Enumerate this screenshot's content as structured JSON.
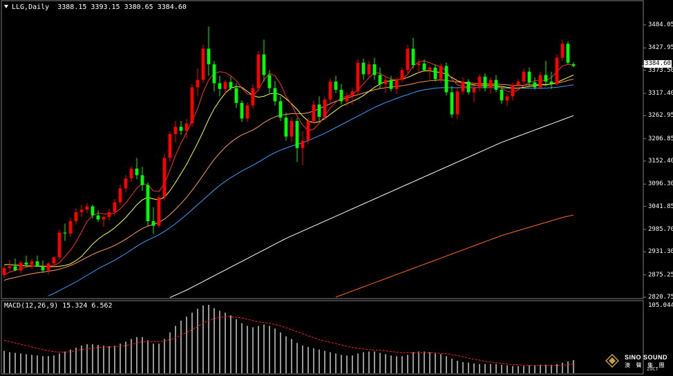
{
  "header": {
    "symbol": "LLG,Daily",
    "ohlc": "3388.15 3393.15 3380.65 3384.60"
  },
  "macd_header": {
    "label": "MACD(12,26,9) 15.324 6.562"
  },
  "price_axis": {
    "labels": [
      "3484.05",
      "3427.95",
      "3373.50",
      "3317.40",
      "3262.95",
      "3206.85",
      "3152.40",
      "3096.30",
      "3041.85",
      "2985.70",
      "2931.30",
      "2875.25",
      "2820.75"
    ],
    "current": "3384.60"
  },
  "macd_axis": {
    "top_label": "105.044"
  },
  "watermark": {
    "brand": "SINO SOUND",
    "sub": "澳 聲 集 團",
    "foot": "ZOCT"
  },
  "colors": {
    "up_candle": "#ff0000",
    "down_candle": "#00ff00",
    "ma_fast": "#ff3030",
    "ma_mid": "#ffff40",
    "ma_slow": "#ff9a60",
    "ma_long": "#3aa0ff",
    "ma_very_long": "#ffffff",
    "ma_longest": "#ff6a20",
    "macd_hist": "#ffffff",
    "macd_signal": "#ff2020",
    "grid": "#7f7f7f"
  },
  "chart_data": {
    "type": "candlestick",
    "price_range": [
      2820.75,
      3484.05
    ],
    "candles": [
      [
        2875,
        2898,
        2868,
        2892
      ],
      [
        2892,
        2912,
        2880,
        2896
      ],
      [
        2896,
        2915,
        2884,
        2886
      ],
      [
        2886,
        2910,
        2879,
        2905
      ],
      [
        2905,
        2922,
        2894,
        2900
      ],
      [
        2900,
        2915,
        2890,
        2908
      ],
      [
        2908,
        2922,
        2898,
        2895
      ],
      [
        2895,
        2910,
        2880,
        2886
      ],
      [
        2886,
        2906,
        2876,
        2903
      ],
      [
        2903,
        2920,
        2895,
        2918
      ],
      [
        2918,
        2985,
        2912,
        2978
      ],
      [
        2978,
        3000,
        2958,
        2976
      ],
      [
        2976,
        3015,
        2968,
        3006
      ],
      [
        3006,
        3038,
        2998,
        3028
      ],
      [
        3028,
        3046,
        3016,
        3034
      ],
      [
        3034,
        3050,
        3026,
        3042
      ],
      [
        3042,
        3046,
        3012,
        3020
      ],
      [
        3020,
        3032,
        3004,
        3010
      ],
      [
        3010,
        3020,
        2992,
        3016
      ],
      [
        3016,
        3036,
        3008,
        3028
      ],
      [
        3028,
        3060,
        3020,
        3052
      ],
      [
        3052,
        3095,
        3044,
        3086
      ],
      [
        3086,
        3118,
        3076,
        3110
      ],
      [
        3110,
        3140,
        3102,
        3134
      ],
      [
        3134,
        3160,
        3108,
        3118
      ],
      [
        3118,
        3138,
        3080,
        3094
      ],
      [
        3094,
        3100,
        2995,
        3006
      ],
      [
        3006,
        3040,
        2975,
        2995
      ],
      [
        2995,
        3070,
        2990,
        3064
      ],
      [
        3064,
        3170,
        3056,
        3160
      ],
      [
        3160,
        3225,
        3150,
        3218
      ],
      [
        3218,
        3250,
        3198,
        3236
      ],
      [
        3236,
        3250,
        3216,
        3226
      ],
      [
        3226,
        3255,
        3208,
        3244
      ],
      [
        3244,
        3340,
        3236,
        3332
      ],
      [
        3332,
        3378,
        3312,
        3350
      ],
      [
        3350,
        3436,
        3342,
        3426
      ],
      [
        3426,
        3480,
        3360,
        3388
      ],
      [
        3388,
        3396,
        3322,
        3342
      ],
      [
        3342,
        3360,
        3310,
        3328
      ],
      [
        3328,
        3350,
        3314,
        3345
      ],
      [
        3345,
        3358,
        3324,
        3330
      ],
      [
        3330,
        3342,
        3282,
        3294
      ],
      [
        3294,
        3300,
        3248,
        3256
      ],
      [
        3256,
        3295,
        3248,
        3288
      ],
      [
        3288,
        3340,
        3280,
        3330
      ],
      [
        3330,
        3420,
        3322,
        3412
      ],
      [
        3412,
        3448,
        3346,
        3362
      ],
      [
        3362,
        3374,
        3318,
        3330
      ],
      [
        3330,
        3348,
        3288,
        3298
      ],
      [
        3298,
        3310,
        3250,
        3258
      ],
      [
        3258,
        3270,
        3202,
        3212
      ],
      [
        3212,
        3258,
        3198,
        3250
      ],
      [
        3250,
        3258,
        3150,
        3184
      ],
      [
        3184,
        3225,
        3142,
        3202
      ],
      [
        3202,
        3258,
        3194,
        3250
      ],
      [
        3250,
        3300,
        3242,
        3290
      ],
      [
        3290,
        3310,
        3250,
        3260
      ],
      [
        3260,
        3310,
        3252,
        3302
      ],
      [
        3302,
        3354,
        3294,
        3346
      ],
      [
        3346,
        3360,
        3318,
        3326
      ],
      [
        3326,
        3340,
        3290,
        3298
      ],
      [
        3298,
        3320,
        3286,
        3312
      ],
      [
        3312,
        3330,
        3290,
        3322
      ],
      [
        3322,
        3400,
        3314,
        3392
      ],
      [
        3392,
        3402,
        3350,
        3364
      ],
      [
        3364,
        3396,
        3356,
        3388
      ],
      [
        3388,
        3404,
        3350,
        3362
      ],
      [
        3362,
        3380,
        3330,
        3340
      ],
      [
        3340,
        3356,
        3318,
        3350
      ],
      [
        3350,
        3360,
        3322,
        3328
      ],
      [
        3328,
        3356,
        3316,
        3350
      ],
      [
        3350,
        3380,
        3344,
        3374
      ],
      [
        3374,
        3436,
        3366,
        3426
      ],
      [
        3426,
        3452,
        3378,
        3386
      ],
      [
        3386,
        3400,
        3366,
        3390
      ],
      [
        3390,
        3400,
        3370,
        3374
      ],
      [
        3374,
        3384,
        3350,
        3380
      ],
      [
        3380,
        3388,
        3346,
        3352
      ],
      [
        3352,
        3390,
        3344,
        3384
      ],
      [
        3384,
        3392,
        3312,
        3320
      ],
      [
        3320,
        3335,
        3258,
        3266
      ],
      [
        3266,
        3330,
        3254,
        3322
      ],
      [
        3322,
        3356,
        3314,
        3346
      ],
      [
        3346,
        3352,
        3314,
        3320
      ],
      [
        3320,
        3334,
        3296,
        3330
      ],
      [
        3330,
        3364,
        3322,
        3358
      ],
      [
        3358,
        3366,
        3322,
        3330
      ],
      [
        3330,
        3356,
        3316,
        3350
      ],
      [
        3350,
        3362,
        3320,
        3326
      ],
      [
        3326,
        3332,
        3292,
        3300
      ],
      [
        3300,
        3318,
        3286,
        3310
      ],
      [
        3310,
        3344,
        3300,
        3338
      ],
      [
        3338,
        3352,
        3324,
        3346
      ],
      [
        3346,
        3378,
        3340,
        3370
      ],
      [
        3370,
        3380,
        3336,
        3344
      ],
      [
        3344,
        3356,
        3326,
        3332
      ],
      [
        3332,
        3370,
        3326,
        3362
      ],
      [
        3362,
        3396,
        3334,
        3346
      ],
      [
        3346,
        3370,
        3328,
        3340
      ],
      [
        3340,
        3412,
        3336,
        3404
      ],
      [
        3404,
        3448,
        3396,
        3438
      ],
      [
        3438,
        3444,
        3388,
        3392
      ],
      [
        3388,
        3393,
        3380,
        3384
      ]
    ],
    "ma_fast": [
      2875,
      2882,
      2886,
      2890,
      2894,
      2896,
      2898,
      2897,
      2896,
      2898,
      2905,
      2920,
      2935,
      2955,
      2980,
      3005,
      3020,
      3025,
      3024,
      3023,
      3026,
      3036,
      3050,
      3068,
      3086,
      3098,
      3094,
      3080,
      3078,
      3098,
      3130,
      3166,
      3196,
      3222,
      3250,
      3280,
      3320,
      3350,
      3366,
      3370,
      3368,
      3360,
      3348,
      3330,
      3316,
      3312,
      3326,
      3350,
      3366,
      3360,
      3340,
      3310,
      3290,
      3262,
      3240,
      3226,
      3230,
      3244,
      3262,
      3282,
      3296,
      3306,
      3310,
      3314,
      3326,
      3340,
      3355,
      3368,
      3366,
      3358,
      3352,
      3350,
      3352,
      3364,
      3384,
      3394,
      3396,
      3392,
      3386,
      3382,
      3372,
      3352,
      3338,
      3334,
      3334,
      3336,
      3338,
      3340,
      3338,
      3336,
      3330,
      3322,
      3320,
      3326,
      3336,
      3344,
      3348,
      3350,
      3348,
      3356,
      3370,
      3384,
      3388,
      3386
    ],
    "ma_mid": [
      2900,
      2900,
      2899,
      2898,
      2897,
      2897,
      2896,
      2896,
      2895,
      2895,
      2896,
      2898,
      2902,
      2910,
      2920,
      2935,
      2950,
      2962,
      2972,
      2980,
      2990,
      3002,
      3015,
      3030,
      3046,
      3058,
      3064,
      3060,
      3058,
      3064,
      3080,
      3100,
      3122,
      3144,
      3170,
      3196,
      3224,
      3254,
      3280,
      3300,
      3318,
      3330,
      3334,
      3332,
      3322,
      3312,
      3308,
      3310,
      3316,
      3318,
      3314,
      3304,
      3292,
      3278,
      3262,
      3250,
      3246,
      3248,
      3256,
      3266,
      3276,
      3286,
      3292,
      3298,
      3304,
      3312,
      3322,
      3332,
      3340,
      3346,
      3348,
      3350,
      3352,
      3356,
      3362,
      3368,
      3372,
      3372,
      3370,
      3368,
      3364,
      3356,
      3348,
      3344,
      3340,
      3338,
      3336,
      3336,
      3336,
      3336,
      3334,
      3332,
      3330,
      3330,
      3332,
      3334,
      3336,
      3338,
      3338,
      3340,
      3344,
      3350,
      3356,
      3362
    ],
    "ma_slow": [
      2862,
      2866,
      2869,
      2872,
      2875,
      2878,
      2880,
      2882,
      2884,
      2886,
      2889,
      2893,
      2898,
      2904,
      2911,
      2918,
      2925,
      2931,
      2936,
      2941,
      2947,
      2954,
      2962,
      2971,
      2980,
      2988,
      2994,
      2998,
      3003,
      3011,
      3022,
      3035,
      3049,
      3064,
      3081,
      3099,
      3118,
      3138,
      3156,
      3172,
      3186,
      3198,
      3208,
      3216,
      3222,
      3228,
      3236,
      3246,
      3254,
      3260,
      3264,
      3266,
      3268,
      3268,
      3268,
      3270,
      3274,
      3280,
      3286,
      3292,
      3298,
      3302,
      3306,
      3310,
      3314,
      3318,
      3322,
      3326,
      3329,
      3331,
      3333,
      3334,
      3336,
      3338,
      3341,
      3344,
      3346,
      3348,
      3349,
      3350,
      3349,
      3347,
      3345,
      3344,
      3343,
      3342,
      3341,
      3341,
      3340,
      3340,
      3339,
      3338,
      3337,
      3337,
      3337,
      3338,
      3338,
      3339,
      3339,
      3340,
      3342,
      3345,
      3349,
      3352
    ],
    "ma_long": [
      2780,
      2785,
      2790,
      2795,
      2800,
      2806,
      2812,
      2818,
      2824,
      2830,
      2837,
      2844,
      2851,
      2858,
      2866,
      2874,
      2882,
      2890,
      2897,
      2904,
      2911,
      2919,
      2927,
      2936,
      2945,
      2953,
      2960,
      2966,
      2973,
      2981,
      2990,
      3000,
      3011,
      3022,
      3034,
      3046,
      3058,
      3070,
      3082,
      3093,
      3103,
      3112,
      3120,
      3128,
      3135,
      3142,
      3150,
      3158,
      3166,
      3173,
      3179,
      3184,
      3189,
      3193,
      3197,
      3202,
      3208,
      3214,
      3220,
      3227,
      3234,
      3241,
      3248,
      3255,
      3262,
      3269,
      3276,
      3283,
      3289,
      3295,
      3300,
      3305,
      3310,
      3314,
      3319,
      3323,
      3326,
      3328,
      3330,
      3331,
      3331,
      3331,
      3331,
      3331,
      3331,
      3331,
      3331,
      3331,
      3331,
      3331,
      3331,
      3330,
      3330,
      3330,
      3330,
      3330,
      3330,
      3330,
      3330,
      3331,
      3332,
      3334,
      3336,
      3338
    ],
    "ma_very_long": [
      2740,
      2742,
      2744,
      2746,
      2748,
      2750,
      2752,
      2754,
      2756,
      2758,
      2760,
      2762,
      2764,
      2766,
      2768,
      2770,
      2772,
      2774,
      2776,
      2778,
      2780,
      2782,
      2784,
      2786,
      2788,
      2790,
      2792,
      2794,
      2796,
      2798,
      2820,
      2826,
      2832,
      2838,
      2845,
      2852,
      2859,
      2866,
      2873,
      2880,
      2887,
      2894,
      2901,
      2908,
      2915,
      2922,
      2929,
      2936,
      2943,
      2950,
      2957,
      2964,
      2970,
      2976,
      2982,
      2988,
      2994,
      3000,
      3006,
      3012,
      3018,
      3024,
      3030,
      3036,
      3042,
      3048,
      3054,
      3060,
      3066,
      3072,
      3078,
      3084,
      3090,
      3096,
      3102,
      3108,
      3114,
      3120,
      3126,
      3132,
      3138,
      3144,
      3150,
      3156,
      3162,
      3168,
      3174,
      3180,
      3186,
      3192,
      3198,
      3203,
      3208,
      3213,
      3218,
      3223,
      3228,
      3233,
      3238,
      3243,
      3248,
      3253,
      3258,
      3263
    ],
    "ma_longest": [
      2700,
      2702,
      2704,
      2706,
      2708,
      2710,
      2712,
      2714,
      2716,
      2718,
      2720,
      2722,
      2724,
      2726,
      2728,
      2730,
      2732,
      2734,
      2736,
      2738,
      2740,
      2742,
      2744,
      2746,
      2748,
      2750,
      2752,
      2754,
      2756,
      2758,
      2760,
      2762,
      2764,
      2766,
      2768,
      2770,
      2772,
      2774,
      2776,
      2778,
      2780,
      2782,
      2784,
      2786,
      2788,
      2790,
      2792,
      2794,
      2796,
      2798,
      2800,
      2802,
      2804,
      2806,
      2808,
      2810,
      2812,
      2814,
      2816,
      2818,
      2821,
      2826,
      2831,
      2836,
      2841,
      2846,
      2851,
      2856,
      2861,
      2866,
      2871,
      2876,
      2881,
      2886,
      2891,
      2896,
      2901,
      2906,
      2911,
      2916,
      2921,
      2926,
      2931,
      2936,
      2941,
      2946,
      2951,
      2956,
      2961,
      2966,
      2971,
      2975,
      2979,
      2983,
      2987,
      2991,
      2995,
      2999,
      3003,
      3007,
      3011,
      3015,
      3018,
      3021
    ],
    "macd_range": [
      0,
      105.044
    ],
    "macd_hist": [
      34,
      32,
      31,
      30,
      29,
      28,
      27,
      26,
      26,
      27,
      30,
      33,
      36,
      39,
      42,
      44,
      44,
      43,
      42,
      41,
      42,
      45,
      48,
      52,
      55,
      55,
      50,
      45,
      45,
      52,
      62,
      72,
      80,
      86,
      92,
      98,
      103,
      104,
      99,
      95,
      92,
      88,
      82,
      76,
      72,
      70,
      72,
      74,
      72,
      68,
      62,
      56,
      52,
      46,
      42,
      40,
      38,
      36,
      34,
      32,
      30,
      28,
      27,
      27,
      30,
      32,
      33,
      33,
      31,
      29,
      27,
      26,
      26,
      28,
      32,
      33,
      33,
      32,
      30,
      29,
      26,
      22,
      19,
      17,
      16,
      15,
      14,
      14,
      14,
      14,
      13,
      12,
      11,
      11,
      11,
      12,
      12,
      13,
      13,
      13,
      14,
      16,
      18,
      20
    ],
    "macd_signal": [
      50,
      48,
      46,
      44,
      42,
      40,
      38,
      36,
      34,
      33,
      32,
      32,
      33,
      34,
      36,
      37,
      38,
      39,
      40,
      40,
      40,
      41,
      42,
      44,
      46,
      48,
      48,
      48,
      48,
      49,
      51,
      54,
      58,
      62,
      66,
      71,
      76,
      80,
      83,
      85,
      86,
      86,
      85,
      84,
      82,
      80,
      78,
      77,
      76,
      74,
      72,
      69,
      66,
      63,
      60,
      57,
      54,
      51,
      49,
      47,
      45,
      43,
      41,
      39,
      38,
      37,
      36,
      35,
      35,
      34,
      33,
      32,
      31,
      31,
      31,
      31,
      31,
      31,
      31,
      30,
      30,
      28,
      27,
      25,
      23,
      21,
      20,
      18,
      17,
      16,
      15,
      14,
      13,
      13,
      12,
      12,
      12,
      12,
      12,
      12,
      12,
      12,
      13,
      14
    ]
  }
}
